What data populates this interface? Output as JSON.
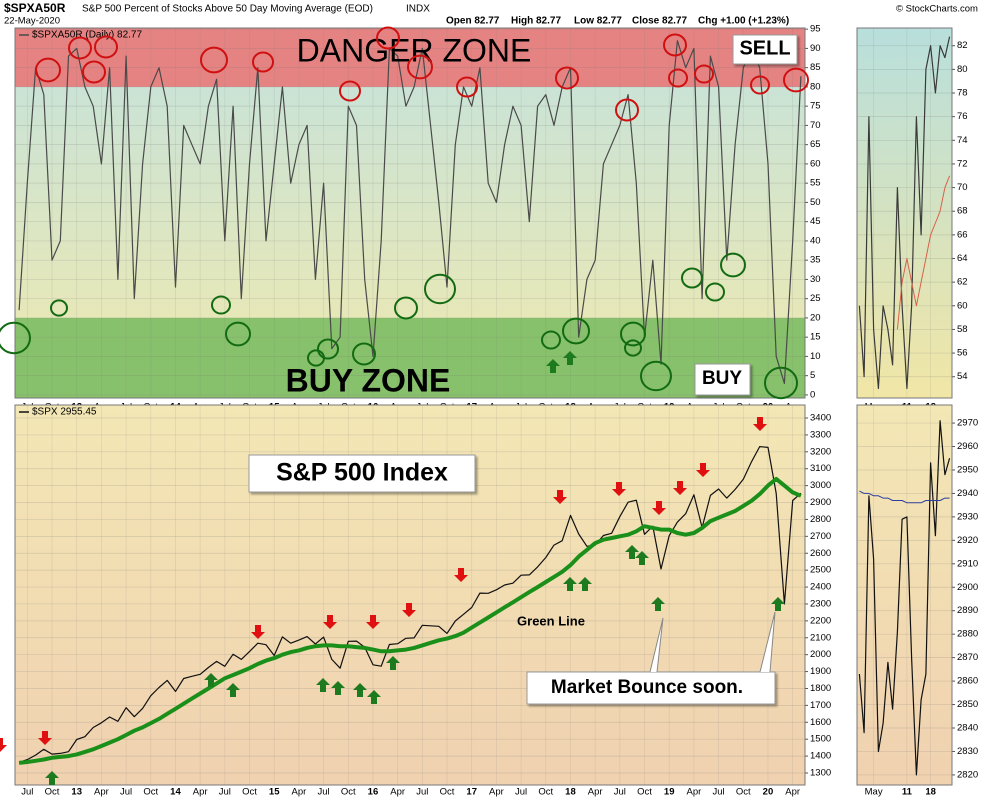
{
  "header": {
    "symbol": "$SPXA50R",
    "description": "S&P 500 Percent of Stocks Above 50 Day Moving Average (EOD)",
    "exchange": "INDX",
    "date": "22-May-2020",
    "open": "Open 82.77",
    "high": "High 82.77",
    "low": "Low 82.77",
    "close": "Close 82.77",
    "change": "Chg +1.00 (+1.23%)",
    "copyright": "© StockCharts.com"
  },
  "chart_data": [
    {
      "type": "line",
      "background": [
        "#c3e2dd",
        "#f0e9ae"
      ],
      "bands": [
        {
          "above": 80,
          "color": "#e58383"
        },
        {
          "below": 20,
          "color": "#87c16b"
        }
      ],
      "annotations": [
        "DANGER ZONE",
        "SELL",
        "BUY ZONE",
        "BUY"
      ],
      "categories": [
        null,
        "Jul",
        null,
        null,
        "Oct",
        null,
        null,
        "13",
        null,
        null,
        "Apr",
        null,
        null,
        "Jul",
        null,
        null,
        "Oct",
        null,
        null,
        "14",
        null,
        null,
        "Apr",
        null,
        null,
        "Jul",
        null,
        null,
        "Oct",
        null,
        null,
        "15",
        null,
        null,
        "Apr",
        null,
        null,
        "Jul",
        null,
        null,
        "Oct",
        null,
        null,
        "16",
        null,
        null,
        "Apr",
        null,
        null,
        "Jul",
        null,
        null,
        "Oct",
        null,
        null,
        "17",
        null,
        null,
        "Apr",
        null,
        null,
        "Jul",
        null,
        null,
        "Oct",
        null,
        null,
        "18",
        null,
        null,
        "Apr",
        null,
        null,
        "Jul",
        null,
        null,
        "Oct",
        null,
        null,
        "19",
        null,
        null,
        "Apr",
        null,
        null,
        "Jul",
        null,
        null,
        "Oct",
        null,
        null,
        "20",
        null,
        null,
        "Apr",
        null
      ],
      "series": [
        {
          "name": "$SPXA50R (Daily) 82.77",
          "color": "#4a4a4a",
          "width": 1.2,
          "values": [
            22,
            55,
            85,
            78,
            35,
            40,
            88,
            90,
            80,
            75,
            60,
            85,
            30,
            88,
            25,
            60,
            80,
            85,
            75,
            28,
            70,
            65,
            60,
            75,
            82,
            40,
            75,
            25,
            60,
            85,
            40,
            60,
            80,
            55,
            65,
            70,
            30,
            55,
            12,
            15,
            75,
            70,
            30,
            10,
            40,
            90,
            88,
            75,
            80,
            90,
            70,
            50,
            28,
            65,
            80,
            75,
            85,
            55,
            50,
            65,
            75,
            70,
            45,
            75,
            78,
            70,
            80,
            85,
            15,
            30,
            35,
            60,
            65,
            70,
            78,
            55,
            15,
            35,
            8,
            70,
            92,
            85,
            90,
            25,
            88,
            80,
            35,
            65,
            85,
            90,
            85,
            60,
            10,
            3,
            40,
            82.77
          ]
        }
      ],
      "ylim": [
        -0.8,
        95.3
      ],
      "yticks": [
        0,
        5,
        10,
        15,
        20,
        25,
        30,
        35,
        40,
        45,
        50,
        55,
        60,
        65,
        70,
        75,
        80,
        85,
        90,
        95
      ],
      "grid": true
    },
    {
      "type": "line",
      "background": [
        "#f3e7b5",
        "#f0d1b0"
      ],
      "annotations": [
        "S&P 500 Index",
        "Green Line",
        "Market Bounce soon."
      ],
      "categories": [
        null,
        "Jul",
        null,
        null,
        "Oct",
        null,
        null,
        "13",
        null,
        null,
        "Apr",
        null,
        null,
        "Jul",
        null,
        null,
        "Oct",
        null,
        null,
        "14",
        null,
        null,
        "Apr",
        null,
        null,
        "Jul",
        null,
        null,
        "Oct",
        null,
        null,
        "15",
        null,
        null,
        "Apr",
        null,
        null,
        "Jul",
        null,
        null,
        "Oct",
        null,
        null,
        "16",
        null,
        null,
        "Apr",
        null,
        null,
        "Jul",
        null,
        null,
        "Oct",
        null,
        null,
        "17",
        null,
        null,
        "Apr",
        null,
        null,
        "Jul",
        null,
        null,
        "Oct",
        null,
        null,
        "18",
        null,
        null,
        "Apr",
        null,
        null,
        "Jul",
        null,
        null,
        "Oct",
        null,
        null,
        "19",
        null,
        null,
        "Apr",
        null,
        null,
        "Jul",
        null,
        null,
        "Oct",
        null,
        null,
        "20",
        null,
        null,
        "Apr",
        null
      ],
      "series": [
        {
          "name": "$SPX 2955.45",
          "color": "#111111",
          "width": 1.2,
          "values": [
            1362,
            1379,
            1406,
            1440,
            1412,
            1416,
            1426,
            1498,
            1515,
            1569,
            1597,
            1631,
            1606,
            1686,
            1633,
            1682,
            1757,
            1806,
            1848,
            1783,
            1859,
            1872,
            1884,
            1924,
            1960,
            1931,
            2003,
            1972,
            2018,
            2068,
            2059,
            1995,
            2105,
            2068,
            2086,
            2107,
            2063,
            2104,
            1972,
            1920,
            2079,
            2080,
            2044,
            1940,
            1932,
            2060,
            2065,
            2097,
            2099,
            2174,
            2171,
            2168,
            2126,
            2199,
            2239,
            2279,
            2364,
            2363,
            2384,
            2412,
            2423,
            2470,
            2472,
            2519,
            2575,
            2648,
            2674,
            2824,
            2714,
            2641,
            2648,
            2705,
            2718,
            2816,
            2902,
            2914,
            2712,
            2760,
            2507,
            2704,
            2784,
            2834,
            2946,
            2752,
            2942,
            2980,
            2926,
            2977,
            3038,
            3141,
            3231,
            3226,
            2954,
            2300,
            2912,
            2955
          ]
        },
        {
          "color": "#1a8f1a",
          "width": 4,
          "values": [
            1360,
            1365,
            1372,
            1380,
            1390,
            1395,
            1400,
            1410,
            1425,
            1440,
            1460,
            1480,
            1500,
            1525,
            1550,
            1570,
            1595,
            1620,
            1650,
            1680,
            1710,
            1740,
            1770,
            1800,
            1830,
            1860,
            1880,
            1900,
            1920,
            1945,
            1965,
            1980,
            2000,
            2015,
            2025,
            2040,
            2050,
            2055,
            2055,
            2050,
            2050,
            2045,
            2040,
            2030,
            2020,
            2020,
            2025,
            2030,
            2040,
            2055,
            2070,
            2085,
            2095,
            2110,
            2130,
            2160,
            2190,
            2220,
            2250,
            2280,
            2310,
            2340,
            2370,
            2400,
            2430,
            2460,
            2490,
            2530,
            2580,
            2620,
            2660,
            2680,
            2690,
            2700,
            2710,
            2730,
            2760,
            2750,
            2740,
            2740,
            2720,
            2710,
            2720,
            2750,
            2790,
            2810,
            2830,
            2850,
            2880,
            2910,
            2950,
            3000,
            3040,
            3000,
            2960,
            2940
          ]
        }
      ],
      "ylim": [
        1229,
        3477
      ],
      "yticks": [
        1300,
        1400,
        1500,
        1600,
        1700,
        1800,
        1900,
        2000,
        2100,
        2200,
        2300,
        2400,
        2500,
        2600,
        2700,
        2800,
        2900,
        3000,
        3100,
        3200,
        3300,
        3400
      ],
      "grid": true
    },
    {
      "type": "line",
      "background": [
        "#b8dfdc",
        "#f1e6a6"
      ],
      "categories": [
        null,
        null,
        null,
        "May",
        null,
        null,
        null,
        null,
        null,
        null,
        "11",
        null,
        null,
        null,
        null,
        "18",
        null,
        null,
        null,
        null
      ],
      "series": [
        {
          "color": "#3a3a3a",
          "width": 1.2,
          "values": [
            60,
            54,
            76,
            58,
            53,
            60,
            58,
            55,
            70,
            60,
            53,
            60,
            76,
            66,
            80,
            82,
            78,
            82,
            81,
            82.77
          ]
        },
        {
          "color": "#d9604a",
          "width": 1,
          "values": [
            null,
            null,
            null,
            null,
            null,
            null,
            null,
            null,
            58,
            62,
            64,
            62,
            60,
            62,
            64,
            66,
            67,
            68,
            70,
            71
          ]
        }
      ],
      "ylim": [
        52.2,
        83.5
      ],
      "yticks": [
        54,
        56,
        58,
        60,
        62,
        64,
        66,
        68,
        70,
        72,
        74,
        76,
        78,
        80,
        82
      ],
      "grid": true
    },
    {
      "type": "line",
      "background": [
        "#f3e7b5",
        "#f0d1b0"
      ],
      "categories": [
        null,
        null,
        null,
        "May",
        null,
        null,
        null,
        null,
        null,
        null,
        "11",
        null,
        null,
        null,
        null,
        "18",
        null,
        null,
        null,
        null
      ],
      "series": [
        {
          "color": "#111111",
          "width": 1.2,
          "values": [
            2863,
            2838,
            2939,
            2912,
            2830,
            2842,
            2868,
            2848,
            2881,
            2929,
            2930,
            2870,
            2820,
            2852,
            2863,
            2953,
            2922,
            2971,
            2948,
            2955
          ]
        },
        {
          "color": "#2b3fa0",
          "width": 1,
          "values": [
            2941,
            2940,
            2940,
            2939,
            2939,
            2938,
            2938,
            2937,
            2937,
            2937,
            2936,
            2936,
            2936,
            2936,
            2937,
            2937,
            2937,
            2937,
            2938,
            2938
          ]
        }
      ],
      "ylim": [
        2815.7,
        2977.7
      ],
      "yticks": [
        2820,
        2830,
        2840,
        2850,
        2860,
        2870,
        2880,
        2890,
        2900,
        2910,
        2920,
        2930,
        2940,
        2950,
        2960,
        2970
      ],
      "grid": true
    }
  ]
}
